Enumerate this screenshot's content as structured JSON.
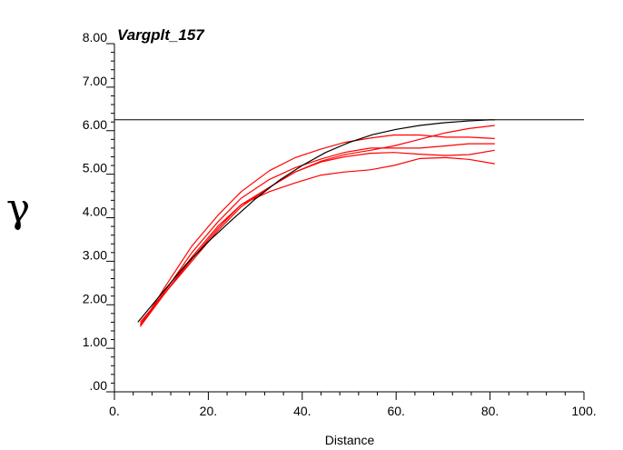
{
  "chart_data": {
    "type": "line",
    "title": "Vargplt_157",
    "xlabel": "Distance",
    "ylabel": "γ",
    "xlim": [
      0,
      100
    ],
    "ylim": [
      0,
      8
    ],
    "x_tick_labels": [
      "0.",
      "20.",
      "40.",
      "60.",
      "80.",
      "100."
    ],
    "y_tick_labels": [
      ".00",
      "1.00",
      "2.00",
      "3.00",
      "4.00",
      "5.00",
      "6.00",
      "7.00",
      "8.00"
    ],
    "sill": 6.25,
    "colors": {
      "experimental": "#ff0000",
      "model": "#000000",
      "sill": "#000000"
    },
    "series": [
      {
        "kind": "experimental",
        "x": [
          5.5,
          11,
          16.5,
          22,
          27,
          33,
          38.5,
          44,
          49,
          54.5,
          59.5,
          65,
          70.5,
          75.5,
          81
        ],
        "y": [
          1.5,
          2.45,
          3.35,
          4.05,
          4.6,
          5.08,
          5.38,
          5.58,
          5.73,
          5.83,
          5.9,
          5.9,
          5.85,
          5.85,
          5.82
        ]
      },
      {
        "kind": "experimental",
        "x": [
          5.5,
          11,
          16.5,
          22,
          27,
          33,
          38.5,
          44,
          49,
          54.5,
          59.5,
          65,
          70.5,
          75.5,
          81
        ],
        "y": [
          1.55,
          2.35,
          3.2,
          3.9,
          4.45,
          4.88,
          5.15,
          5.35,
          5.5,
          5.6,
          5.6,
          5.6,
          5.65,
          5.7,
          5.7
        ]
      },
      {
        "kind": "experimental",
        "x": [
          5.5,
          11,
          16.5,
          22,
          27,
          33,
          38.5,
          44,
          49,
          54.5,
          59.5,
          65,
          70.5,
          75.5,
          81
        ],
        "y": [
          1.55,
          2.3,
          3.05,
          3.75,
          4.3,
          4.7,
          5.05,
          5.28,
          5.4,
          5.48,
          5.5,
          5.46,
          5.43,
          5.45,
          5.55
        ]
      },
      {
        "kind": "experimental",
        "x": [
          5.5,
          11,
          16.5,
          22,
          27,
          33,
          38.5,
          44,
          49,
          54.5,
          59.5,
          65,
          70.5,
          75.5,
          81
        ],
        "y": [
          1.5,
          2.3,
          3.1,
          3.8,
          4.3,
          4.6,
          4.8,
          4.98,
          5.05,
          5.1,
          5.2,
          5.36,
          5.38,
          5.34,
          5.24
        ]
      },
      {
        "kind": "experimental",
        "x": [
          5.5,
          11,
          16.5,
          22,
          27,
          33,
          38.5,
          44,
          49,
          54.5,
          59.5,
          65,
          70.5,
          75.5,
          81
        ],
        "y": [
          1.6,
          2.3,
          3.0,
          3.7,
          4.25,
          4.7,
          5.05,
          5.3,
          5.45,
          5.55,
          5.65,
          5.8,
          5.95,
          6.05,
          6.12
        ]
      },
      {
        "kind": "model",
        "x": [
          5,
          10,
          15,
          20,
          25,
          30,
          35,
          40,
          45,
          50,
          55,
          60,
          65,
          70,
          75,
          80,
          81
        ],
        "y": [
          1.6,
          2.25,
          2.9,
          3.45,
          3.95,
          4.43,
          4.85,
          5.2,
          5.5,
          5.73,
          5.91,
          6.03,
          6.12,
          6.18,
          6.22,
          6.25,
          6.25
        ]
      }
    ]
  }
}
